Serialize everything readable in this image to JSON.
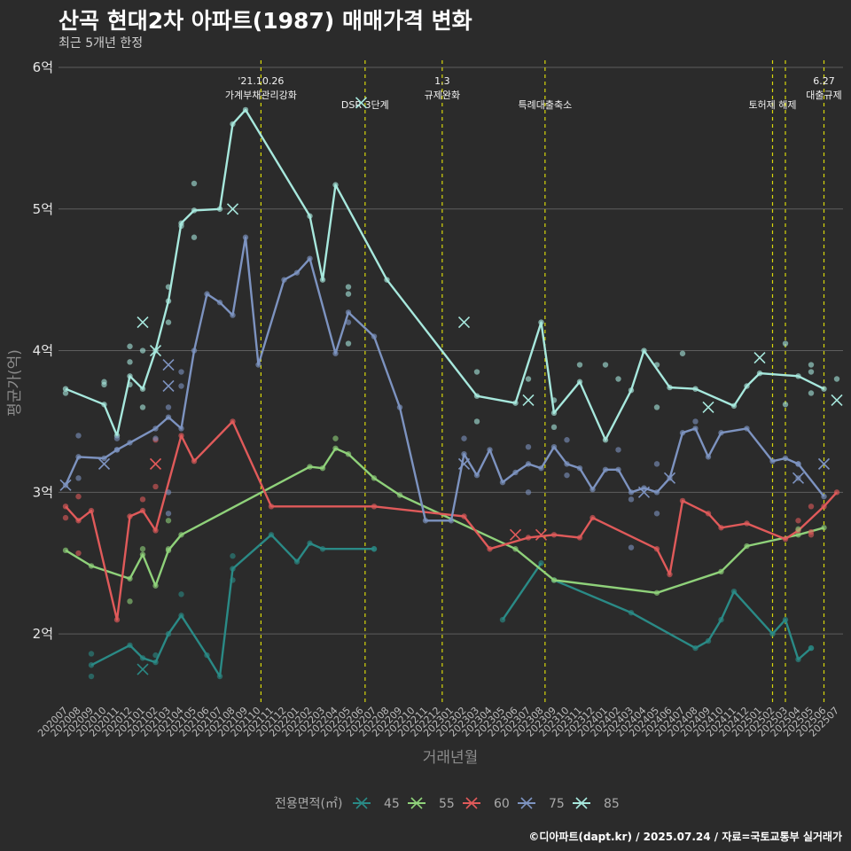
{
  "header": {
    "title": "산곡 현대2차 아파트(1987) 매매가격 변화",
    "subtitle": "최근 5개년 한정"
  },
  "caption": "©디아파트(dapt.kr) / 2025.07.24 / 자료=국토교통부 실거래가",
  "chart_data": {
    "type": "line",
    "xlabel": "거래년월",
    "ylabel": "평균가(억)",
    "ylim": [
      1.5,
      6.05
    ],
    "yticks": [
      {
        "value": 2,
        "label": "2억"
      },
      {
        "value": 3,
        "label": "3억"
      },
      {
        "value": 4,
        "label": "4억"
      },
      {
        "value": 5,
        "label": "5억"
      },
      {
        "value": 6,
        "label": "6억"
      }
    ],
    "categories": [
      "202007",
      "202008",
      "202009",
      "202010",
      "202011",
      "202012",
      "202101",
      "202102",
      "202103",
      "202104",
      "202105",
      "202106",
      "202107",
      "202108",
      "202109",
      "202110",
      "202111",
      "202112",
      "202201",
      "202202",
      "202203",
      "202204",
      "202205",
      "202206",
      "202207",
      "202208",
      "202209",
      "202210",
      "202211",
      "202212",
      "202301",
      "202302",
      "202303",
      "202304",
      "202305",
      "202306",
      "202307",
      "202308",
      "202309",
      "202310",
      "202311",
      "202312",
      "202401",
      "202402",
      "202403",
      "202404",
      "202405",
      "202406",
      "202407",
      "202408",
      "202409",
      "202410",
      "202411",
      "202412",
      "202501",
      "202502",
      "202503",
      "202504",
      "202505",
      "202506",
      "202507"
    ],
    "grid": true,
    "legend": {
      "title": "전용면적(㎡)",
      "position": "bottom"
    },
    "colors": {
      "45": "#2a8a86",
      "55": "#8fd17a",
      "60": "#e05a5a",
      "75": "#7d93c0",
      "85": "#a7e8dd"
    },
    "events": [
      {
        "x": 15.2,
        "label": "'21.10.26\n가계부채관리강화"
      },
      {
        "x": 23.3,
        "label": "DSR 3단계"
      },
      {
        "x": 29.3,
        "label": "1.3\n규제완화"
      },
      {
        "x": 37.3,
        "label": "특례대출축소"
      },
      {
        "x": 55.0,
        "label": "토허제 해제"
      },
      {
        "x": 56.0,
        "label": ""
      },
      {
        "x": 59.0,
        "label": "6.27\n대출규제"
      }
    ],
    "series": [
      {
        "name": "45",
        "values": [
          [
            2,
            1.78
          ],
          [
            5,
            1.92
          ],
          [
            6,
            1.83
          ],
          [
            7,
            1.8
          ],
          [
            8,
            2.0
          ],
          [
            9,
            2.13
          ],
          [
            11,
            1.85
          ],
          [
            12,
            1.7
          ],
          [
            13,
            2.46
          ],
          [
            16,
            2.7
          ],
          [
            18,
            2.51
          ],
          [
            19,
            2.64
          ],
          [
            20,
            2.6
          ],
          [
            24,
            2.6
          ],
          [
            null,
            null
          ],
          [
            34,
            2.1
          ],
          [
            37,
            2.5
          ],
          [
            null,
            null
          ],
          [
            38,
            2.38
          ],
          [
            44,
            2.15
          ],
          [
            49,
            1.9
          ],
          [
            50,
            1.95
          ],
          [
            51,
            2.1
          ],
          [
            52,
            2.3
          ],
          [
            55,
            2.0
          ],
          [
            56,
            2.1
          ],
          [
            57,
            1.82
          ],
          [
            58,
            1.9
          ]
        ]
      },
      {
        "name": "55",
        "values": [
          [
            0,
            2.59
          ],
          [
            2,
            2.48
          ],
          [
            5,
            2.39
          ],
          [
            6,
            2.56
          ],
          [
            7,
            2.34
          ],
          [
            8,
            2.59
          ],
          [
            9,
            2.7
          ],
          [
            19,
            3.18
          ],
          [
            20,
            3.17
          ],
          [
            21,
            3.31
          ],
          [
            22,
            3.27
          ],
          [
            24,
            3.1
          ],
          [
            26,
            2.98
          ],
          [
            35,
            2.6
          ],
          [
            38,
            2.38
          ],
          [
            46,
            2.29
          ],
          [
            51,
            2.44
          ],
          [
            53,
            2.62
          ],
          [
            57,
            2.7
          ],
          [
            59,
            2.75
          ]
        ]
      },
      {
        "name": "60",
        "values": [
          [
            0,
            2.9
          ],
          [
            1,
            2.8
          ],
          [
            2,
            2.87
          ],
          [
            4,
            2.1
          ],
          [
            5,
            2.83
          ],
          [
            6,
            2.87
          ],
          [
            7,
            2.73
          ],
          [
            9,
            3.4
          ],
          [
            10,
            3.22
          ],
          [
            13,
            3.5
          ],
          [
            16,
            2.9
          ],
          [
            24,
            2.9
          ],
          [
            31,
            2.83
          ],
          [
            33,
            2.6
          ],
          [
            36,
            2.68
          ],
          [
            38,
            2.7
          ],
          [
            40,
            2.68
          ],
          [
            41,
            2.82
          ],
          [
            46,
            2.6
          ],
          [
            47,
            2.42
          ],
          [
            48,
            2.94
          ],
          [
            50,
            2.85
          ],
          [
            51,
            2.75
          ],
          [
            53,
            2.78
          ],
          [
            56,
            2.67
          ],
          [
            57,
            2.73
          ],
          [
            59,
            2.9
          ],
          [
            60,
            3.0
          ]
        ]
      },
      {
        "name": "75",
        "values": [
          [
            0,
            3.05
          ],
          [
            1,
            3.25
          ],
          [
            3,
            3.24
          ],
          [
            4,
            3.3
          ],
          [
            5,
            3.35
          ],
          [
            7,
            3.45
          ],
          [
            8,
            3.53
          ],
          [
            9,
            3.45
          ],
          [
            10,
            4.0
          ],
          [
            11,
            4.4
          ],
          [
            12,
            4.34
          ],
          [
            13,
            4.25
          ],
          [
            14,
            4.8
          ],
          [
            15,
            3.9
          ],
          [
            17,
            4.5
          ],
          [
            18,
            4.55
          ],
          [
            19,
            4.65
          ],
          [
            21,
            3.98
          ],
          [
            22,
            4.27
          ],
          [
            24,
            4.1
          ],
          [
            26,
            3.6
          ],
          [
            28,
            2.8
          ],
          [
            30,
            2.8
          ],
          [
            31,
            3.27
          ],
          [
            32,
            3.12
          ],
          [
            33,
            3.3
          ],
          [
            34,
            3.07
          ],
          [
            35,
            3.14
          ],
          [
            36,
            3.2
          ],
          [
            37,
            3.17
          ],
          [
            38,
            3.32
          ],
          [
            39,
            3.2
          ],
          [
            40,
            3.17
          ],
          [
            41,
            3.02
          ],
          [
            42,
            3.16
          ],
          [
            43,
            3.16
          ],
          [
            44,
            3.0
          ],
          [
            45,
            3.03
          ],
          [
            46,
            3.0
          ],
          [
            47,
            3.1
          ],
          [
            48,
            3.42
          ],
          [
            49,
            3.45
          ],
          [
            50,
            3.25
          ],
          [
            51,
            3.42
          ],
          [
            53,
            3.45
          ],
          [
            55,
            3.22
          ],
          [
            56,
            3.24
          ],
          [
            57,
            3.2
          ],
          [
            59,
            2.97
          ]
        ]
      },
      {
        "name": "85",
        "values": [
          [
            0,
            3.73
          ],
          [
            3,
            3.62
          ],
          [
            4,
            3.4
          ],
          [
            5,
            3.82
          ],
          [
            6,
            3.73
          ],
          [
            7,
            4.0
          ],
          [
            8,
            4.35
          ],
          [
            9,
            4.9
          ],
          [
            10,
            4.99
          ],
          [
            12,
            5.0
          ],
          [
            13,
            5.6
          ],
          [
            14,
            5.7
          ],
          [
            19,
            4.95
          ],
          [
            20,
            4.5
          ],
          [
            21,
            5.17
          ],
          [
            25,
            4.5
          ],
          [
            32,
            3.68
          ],
          [
            35,
            3.63
          ],
          [
            37,
            4.2
          ],
          [
            38,
            3.56
          ],
          [
            40,
            3.78
          ],
          [
            42,
            3.37
          ],
          [
            44,
            3.72
          ],
          [
            45,
            4.0
          ],
          [
            47,
            3.74
          ],
          [
            49,
            3.73
          ],
          [
            52,
            3.61
          ],
          [
            53,
            3.75
          ],
          [
            54,
            3.84
          ],
          [
            57,
            3.82
          ],
          [
            59,
            3.73
          ]
        ]
      }
    ],
    "points": [
      {
        "s": "45",
        "x": 2,
        "y": 1.7
      },
      {
        "s": "45",
        "x": 2,
        "y": 1.86
      },
      {
        "s": "45",
        "x": 7,
        "y": 1.85
      },
      {
        "s": "45",
        "x": 9,
        "y": 2.28
      },
      {
        "s": "45",
        "x": 13,
        "y": 2.38
      },
      {
        "s": "45",
        "x": 13,
        "y": 2.55
      },
      {
        "s": "45",
        "x": 24,
        "y": 2.6
      },
      {
        "s": "45",
        "x": 58,
        "y": 1.9
      },
      {
        "s": "55",
        "x": 5,
        "y": 2.23
      },
      {
        "s": "55",
        "x": 6,
        "y": 2.6
      },
      {
        "s": "55",
        "x": 8,
        "y": 2.8
      },
      {
        "s": "55",
        "x": 8,
        "y": 2.6
      },
      {
        "s": "55",
        "x": 21,
        "y": 3.38
      },
      {
        "s": "55",
        "x": 57,
        "y": 2.74
      },
      {
        "s": "60",
        "x": 0,
        "y": 2.82
      },
      {
        "s": "60",
        "x": 1,
        "y": 2.57
      },
      {
        "s": "60",
        "x": 1,
        "y": 2.97
      },
      {
        "s": "60",
        "x": 6,
        "y": 2.95
      },
      {
        "s": "60",
        "x": 7,
        "y": 3.04
      },
      {
        "s": "60",
        "x": 7,
        "y": 3.37
      },
      {
        "s": "60",
        "x": 57,
        "y": 2.8
      },
      {
        "s": "60",
        "x": 58,
        "y": 2.9
      },
      {
        "s": "60",
        "x": 58,
        "y": 2.7
      },
      {
        "s": "60",
        "x": 58,
        "y": 2.72
      },
      {
        "s": "75",
        "x": 1,
        "y": 3.4
      },
      {
        "s": "75",
        "x": 1,
        "y": 3.1
      },
      {
        "s": "75",
        "x": 4,
        "y": 3.38
      },
      {
        "s": "75",
        "x": 4,
        "y": 3.3
      },
      {
        "s": "75",
        "x": 7,
        "y": 3.38
      },
      {
        "s": "75",
        "x": 8,
        "y": 3.0
      },
      {
        "s": "75",
        "x": 8,
        "y": 2.85
      },
      {
        "s": "75",
        "x": 8,
        "y": 3.6
      },
      {
        "s": "75",
        "x": 9,
        "y": 3.75
      },
      {
        "s": "75",
        "x": 9,
        "y": 3.85
      },
      {
        "s": "75",
        "x": 22,
        "y": 4.2
      },
      {
        "s": "75",
        "x": 31,
        "y": 3.38
      },
      {
        "s": "75",
        "x": 36,
        "y": 3.32
      },
      {
        "s": "75",
        "x": 36,
        "y": 3.0
      },
      {
        "s": "75",
        "x": 39,
        "y": 3.37
      },
      {
        "s": "75",
        "x": 39,
        "y": 3.12
      },
      {
        "s": "75",
        "x": 43,
        "y": 3.3
      },
      {
        "s": "75",
        "x": 44,
        "y": 2.95
      },
      {
        "s": "75",
        "x": 44,
        "y": 2.61
      },
      {
        "s": "75",
        "x": 46,
        "y": 2.85
      },
      {
        "s": "75",
        "x": 46,
        "y": 3.2
      },
      {
        "s": "75",
        "x": 49,
        "y": 3.5
      },
      {
        "s": "75",
        "x": 57,
        "y": 3.2
      },
      {
        "s": "75",
        "x": 57,
        "y": 3.1
      },
      {
        "s": "85",
        "x": 0,
        "y": 3.7
      },
      {
        "s": "85",
        "x": 3,
        "y": 3.78
      },
      {
        "s": "85",
        "x": 3,
        "y": 3.76
      },
      {
        "s": "85",
        "x": 5,
        "y": 3.92
      },
      {
        "s": "85",
        "x": 5,
        "y": 4.03
      },
      {
        "s": "85",
        "x": 5,
        "y": 3.76
      },
      {
        "s": "85",
        "x": 6,
        "y": 4.0
      },
      {
        "s": "85",
        "x": 6,
        "y": 3.6
      },
      {
        "s": "85",
        "x": 8,
        "y": 4.45
      },
      {
        "s": "85",
        "x": 8,
        "y": 4.2
      },
      {
        "s": "85",
        "x": 9,
        "y": 4.88
      },
      {
        "s": "85",
        "x": 10,
        "y": 5.18
      },
      {
        "s": "85",
        "x": 10,
        "y": 4.8
      },
      {
        "s": "85",
        "x": 22,
        "y": 4.45
      },
      {
        "s": "85",
        "x": 22,
        "y": 4.4
      },
      {
        "s": "85",
        "x": 22,
        "y": 4.05
      },
      {
        "s": "85",
        "x": 32,
        "y": 3.85
      },
      {
        "s": "85",
        "x": 32,
        "y": 3.5
      },
      {
        "s": "85",
        "x": 36,
        "y": 3.8
      },
      {
        "s": "85",
        "x": 38,
        "y": 3.65
      },
      {
        "s": "85",
        "x": 38,
        "y": 3.46
      },
      {
        "s": "85",
        "x": 40,
        "y": 3.9
      },
      {
        "s": "85",
        "x": 42,
        "y": 3.9
      },
      {
        "s": "85",
        "x": 43,
        "y": 3.8
      },
      {
        "s": "85",
        "x": 46,
        "y": 3.9
      },
      {
        "s": "85",
        "x": 46,
        "y": 3.6
      },
      {
        "s": "85",
        "x": 48,
        "y": 3.98
      },
      {
        "s": "85",
        "x": 56,
        "y": 4.05
      },
      {
        "s": "85",
        "x": 56,
        "y": 3.62
      },
      {
        "s": "85",
        "x": 58,
        "y": 3.85
      },
      {
        "s": "85",
        "x": 58,
        "y": 3.9
      },
      {
        "s": "85",
        "x": 58,
        "y": 3.7
      },
      {
        "s": "85",
        "x": 60,
        "y": 3.8
      }
    ],
    "crosses": [
      {
        "s": "45",
        "x": 6,
        "y": 1.75
      },
      {
        "s": "60",
        "x": 7,
        "y": 3.2
      },
      {
        "s": "60",
        "x": 35,
        "y": 2.7
      },
      {
        "s": "60",
        "x": 37,
        "y": 2.7
      },
      {
        "s": "75",
        "x": 0,
        "y": 3.05
      },
      {
        "s": "75",
        "x": 3,
        "y": 3.2
      },
      {
        "s": "75",
        "x": 8,
        "y": 3.9
      },
      {
        "s": "75",
        "x": 8,
        "y": 3.75
      },
      {
        "s": "75",
        "x": 31,
        "y": 3.2
      },
      {
        "s": "75",
        "x": 45,
        "y": 3.0
      },
      {
        "s": "75",
        "x": 47,
        "y": 3.1
      },
      {
        "s": "75",
        "x": 57,
        "y": 3.1
      },
      {
        "s": "75",
        "x": 59,
        "y": 3.2
      },
      {
        "s": "85",
        "x": 6,
        "y": 4.2
      },
      {
        "s": "85",
        "x": 7,
        "y": 4.0
      },
      {
        "s": "85",
        "x": 13,
        "y": 5.0
      },
      {
        "s": "85",
        "x": 23,
        "y": 5.75
      },
      {
        "s": "85",
        "x": 31,
        "y": 4.2
      },
      {
        "s": "85",
        "x": 36,
        "y": 3.65
      },
      {
        "s": "85",
        "x": 50,
        "y": 3.6
      },
      {
        "s": "85",
        "x": 54,
        "y": 3.95
      },
      {
        "s": "85",
        "x": 60,
        "y": 3.65
      }
    ]
  }
}
